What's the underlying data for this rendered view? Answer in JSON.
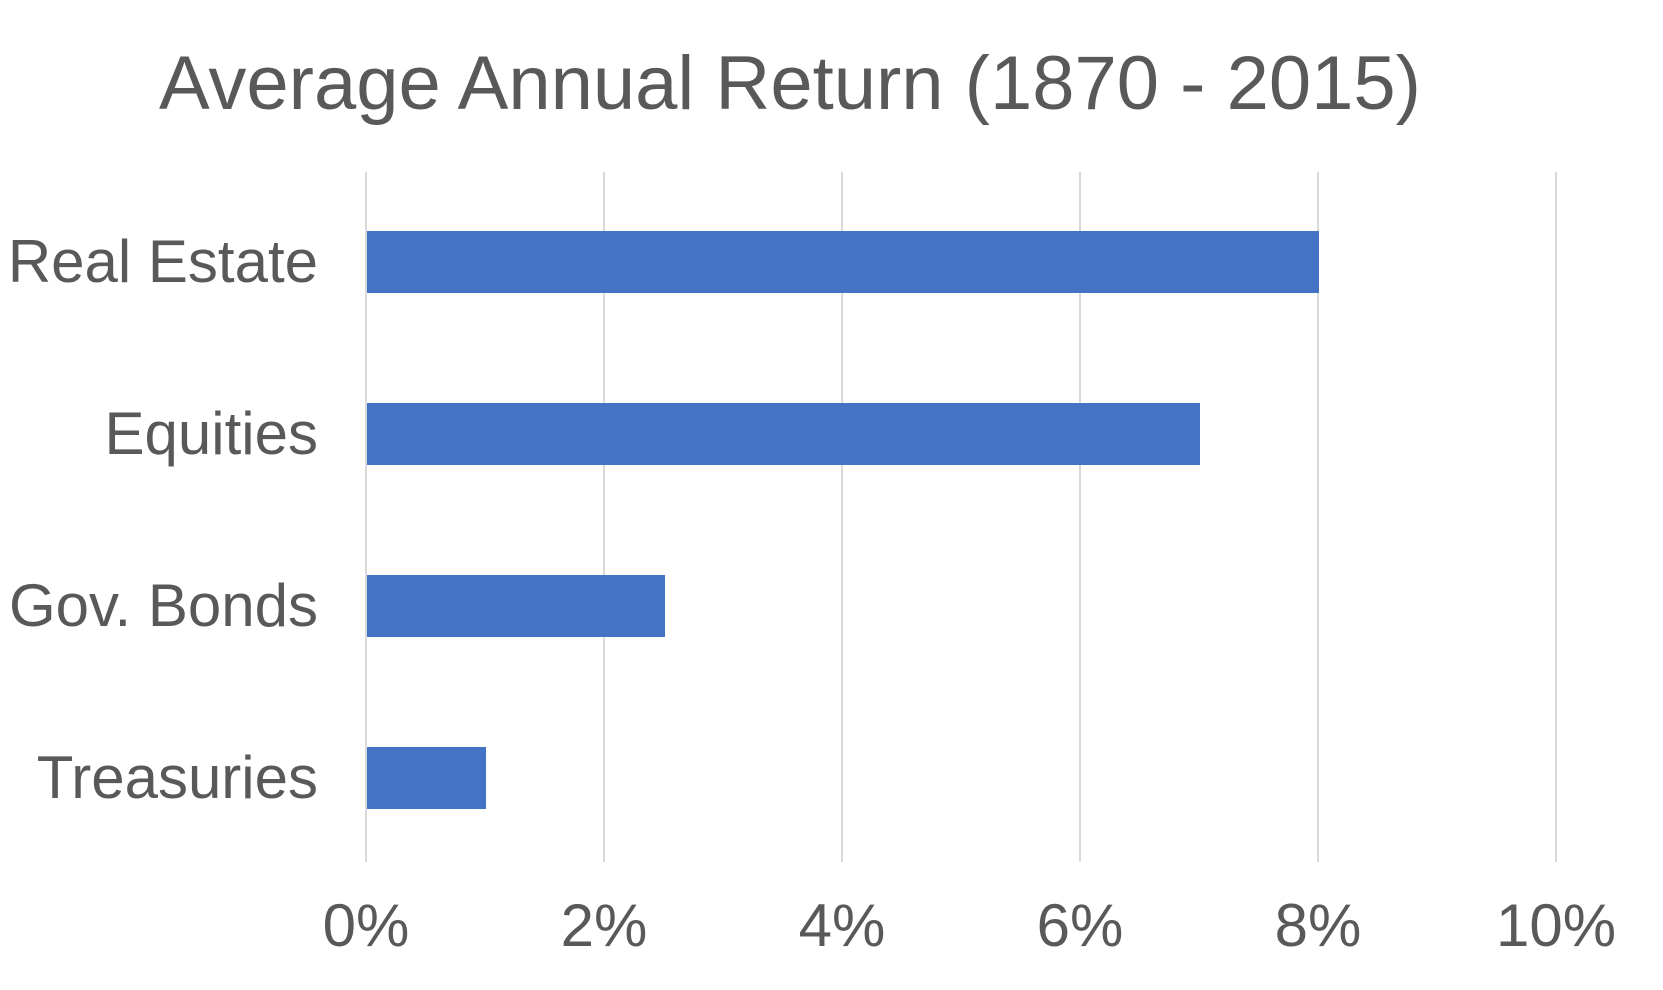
{
  "chart_data": {
    "type": "bar",
    "orientation": "horizontal",
    "title": "Average Annual Return (1870 - 2015)",
    "categories": [
      "Real Estate",
      "Equities",
      "Gov. Bonds",
      "Treasuries"
    ],
    "values": [
      8.0,
      7.0,
      2.5,
      1.0
    ],
    "value_unit": "%",
    "xlabel": "",
    "ylabel": "",
    "xlim": [
      0,
      10
    ],
    "xticks": [
      0,
      2,
      4,
      6,
      8,
      10
    ],
    "xtick_labels": [
      "0%",
      "2%",
      "4%",
      "6%",
      "8%",
      "10%"
    ],
    "grid": "vertical",
    "legend": false,
    "colors": {
      "bar": "#4472C4",
      "gridline": "#D9D9D9",
      "title_text": "#595959",
      "label_text": "#595959",
      "background": "#FFFFFF"
    }
  }
}
